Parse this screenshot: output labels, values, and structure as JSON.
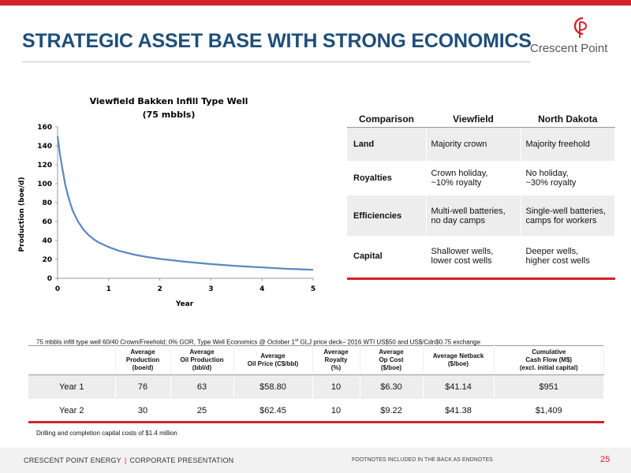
{
  "slide": {
    "title": "STRATEGIC ASSET BASE WITH STRONG ECONOMICS",
    "logo_text": "Crescent Point",
    "accent_color": "#d2232a",
    "title_color": "#1f4e79"
  },
  "chart_data": {
    "type": "line",
    "title": "Viewfield Bakken Infill Type Well",
    "subtitle": "(75 mbbls)",
    "xlabel": "Year",
    "ylabel": "Production (boe/d)",
    "xlim": [
      0,
      5
    ],
    "ylim": [
      0,
      160
    ],
    "xticks": [
      "0",
      "1",
      "2",
      "3",
      "4",
      "5"
    ],
    "yticks": [
      "0",
      "20",
      "40",
      "60",
      "80",
      "100",
      "120",
      "140",
      "160"
    ],
    "grid": false,
    "series": [
      {
        "color": "#5b86c4",
        "x": [
          0,
          0.02,
          0.05,
          0.1,
          0.15,
          0.2,
          0.25,
          0.3,
          0.4,
          0.5,
          0.6,
          0.7,
          0.8,
          1.0,
          1.2,
          1.5,
          1.75,
          2.0,
          2.5,
          3.0,
          3.5,
          4.0,
          4.5,
          5.0
        ],
        "y": [
          150,
          142,
          130,
          114,
          99,
          88,
          79,
          71,
          60,
          52,
          46,
          41.5,
          38,
          33,
          29,
          25,
          22.5,
          20.5,
          17.5,
          15,
          13,
          11.5,
          10,
          9
        ]
      }
    ]
  },
  "comparison": {
    "headers": [
      "Comparison",
      "Viewfield",
      "North Dakota"
    ],
    "rows": [
      {
        "label": "Land",
        "viewfield": "Majority crown",
        "nd": "Majority freehold"
      },
      {
        "label": "Royalties",
        "viewfield": "Crown holiday,\n~10% royalty",
        "nd": "No holiday,\n~30% royalty"
      },
      {
        "label": "Efficiencies",
        "viewfield": "Multi-well batteries,\nno day camps",
        "nd": "Single-well batteries,\ncamps for workers"
      },
      {
        "label": "Capital",
        "viewfield": "Shallower wells,\nlower cost  wells",
        "nd": "Deeper wells,\nhigher cost wells"
      }
    ]
  },
  "economics": {
    "note_before_sup": "75 mbbls infill type well 60/40 Crown/Freehold; 0% GOR, Type Well Economics @ October 1",
    "note_sup": "st",
    "note_after_sup": " GLJ price deck– 2016 WTI US$50 and US$/Cdn$0.75 exchange",
    "headers": [
      "",
      "Average\nProduction\n(boe/d)",
      "Average\nOil Production\n(bbl/d)",
      "Average\nOil Price (C$/bbl)",
      "Average\nRoyalty\n(%)",
      "Average\nOp Cost\n($/boe)",
      "Average Netback\n($/boe)",
      "Cumulative\nCash Flow (M$)\n(excl. initial capital)"
    ],
    "rows": [
      {
        "year": "Year 1",
        "prod": "76",
        "oil": "63",
        "price": "$58.80",
        "royalty": "10",
        "opcost": "$6.30",
        "netback": "$41.14",
        "cashflow": "$951"
      },
      {
        "year": "Year 2",
        "prod": "30",
        "oil": "25",
        "price": "$62.45",
        "royalty": "10",
        "opcost": "$9.22",
        "netback": "$41.38",
        "cashflow": "$1,409"
      }
    ],
    "footnote": "Drilling and completion capital costs of $1.4 million"
  },
  "footer": {
    "company": "CRESCENT POINT ENERGY",
    "separator": "|",
    "presentation": "CORPORATE PRESENTATION",
    "endnotes": "FOOTNOTES INCLUDED IN THE BACK AS ENDNOTES",
    "page": "25"
  }
}
